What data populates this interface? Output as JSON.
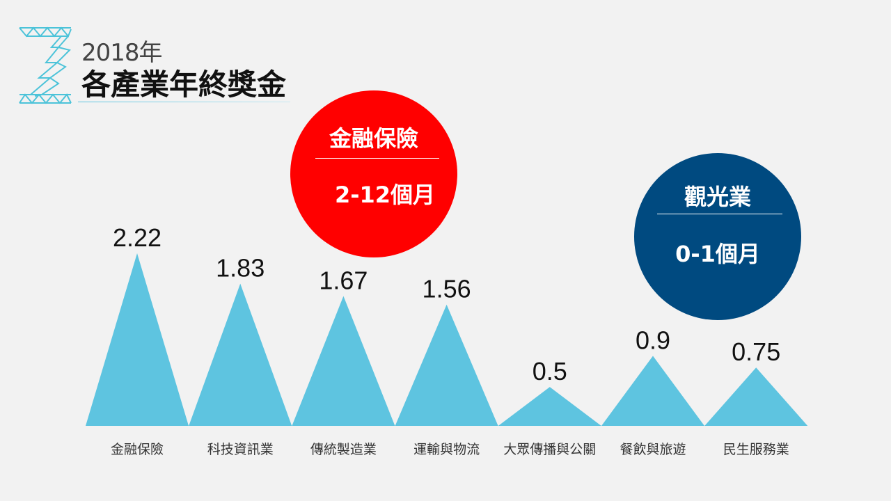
{
  "header": {
    "subtitle": "2018年",
    "title": "各產業年終獎金"
  },
  "chart_data": {
    "type": "bar",
    "mark_shape": "triangle",
    "categories": [
      "金融保險",
      "科技資訊業",
      "傳統製造業",
      "運輸與物流",
      "大眾傳播與公關",
      "餐飲與旅遊",
      "民生服務業"
    ],
    "values": [
      2.22,
      1.83,
      1.67,
      1.56,
      0.5,
      0.9,
      0.75
    ],
    "data_labels": [
      "2.22",
      "1.83",
      "1.67",
      "1.56",
      "0.5",
      "0.9",
      "0.75"
    ],
    "ylim": [
      0,
      2.22
    ],
    "grid": false,
    "colors": {
      "bar": "#5ec4e0",
      "label": "#111111",
      "category": "#333333"
    }
  },
  "callouts": [
    {
      "title": "金融保險",
      "value": "2-12個月",
      "color": "#ff0000"
    },
    {
      "title": "觀光業",
      "value": "0-1個月",
      "color": "#004a80"
    }
  ],
  "logo": {
    "icon": "z-lattice-logo",
    "color": "#4cc3d9"
  }
}
